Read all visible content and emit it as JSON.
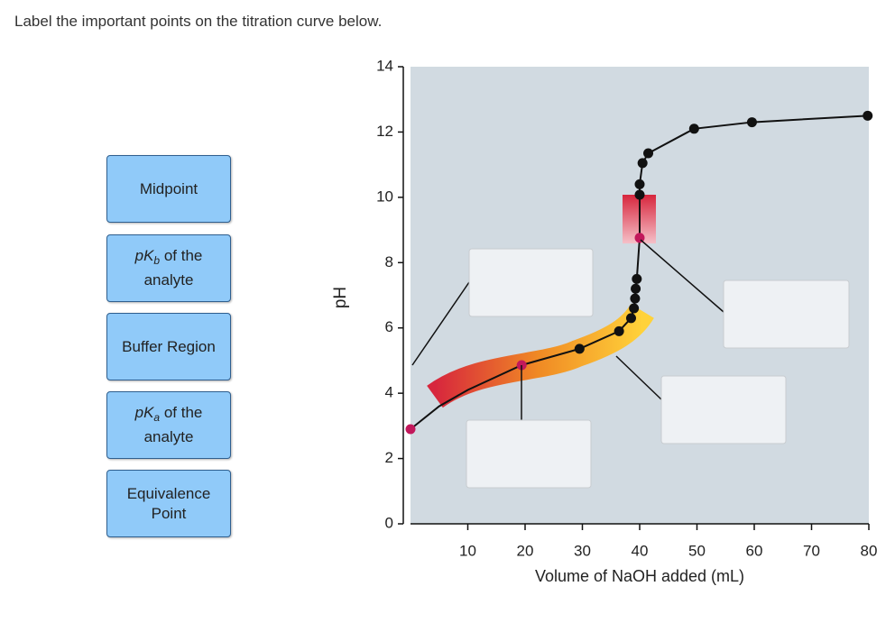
{
  "instruction": "Label the important points on the titration curve below.",
  "labels": [
    {
      "parts": [
        "Midpoint"
      ]
    },
    {
      "parts": [
        "pK",
        "b",
        " of the analyte"
      ]
    },
    {
      "parts": [
        "Buffer Region"
      ]
    },
    {
      "parts": [
        "pK",
        "a",
        " of the analyte"
      ]
    },
    {
      "parts": [
        "Equivalence Point"
      ]
    }
  ],
  "chart_data": {
    "type": "line",
    "y_label": "pH",
    "x_label": "Volume of NaOH added (mL)",
    "xlim": [
      0,
      80
    ],
    "ylim": [
      0,
      14
    ],
    "xticks": [
      10,
      20,
      30,
      40,
      50,
      60,
      70,
      80
    ],
    "yticks": [
      0,
      2,
      4,
      6,
      8,
      10,
      12,
      14
    ],
    "series": [
      {
        "color": "#111111",
        "markers": false,
        "x": [
          0,
          5,
          10,
          19.4,
          29.5,
          36.4,
          38.5,
          39,
          39.2,
          39.3,
          39.5,
          40,
          40,
          40,
          40.5,
          41.5,
          49.5,
          59.6,
          79.8
        ],
        "values": [
          2.9,
          3.6,
          4.1,
          4.86,
          5.36,
          5.9,
          6.3,
          6.6,
          6.9,
          7.2,
          7.5,
          8.76,
          10.08,
          10.4,
          11.05,
          11.35,
          12.1,
          12.3,
          12.5
        ]
      },
      {
        "color": "#111111",
        "markers": true,
        "x": [
          29.5,
          36.4,
          38.5,
          39,
          39.2,
          39.3,
          39.5,
          40,
          40,
          40.5,
          41.5,
          49.5,
          59.6,
          79.8
        ],
        "values": [
          5.36,
          5.9,
          6.3,
          6.6,
          6.9,
          7.2,
          7.5,
          10.08,
          10.4,
          11.05,
          11.35,
          12.1,
          12.3,
          12.5
        ]
      },
      {
        "color": "#c2185b",
        "markers": true,
        "x": [
          0,
          19.4,
          40
        ],
        "values": [
          2.9,
          4.86,
          8.76
        ]
      }
    ]
  }
}
